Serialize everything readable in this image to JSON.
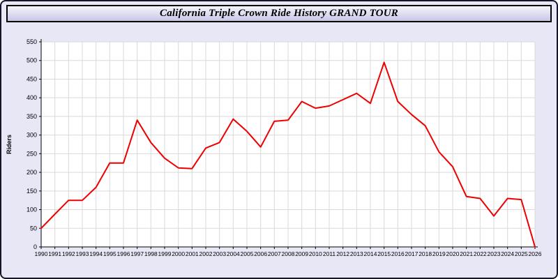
{
  "title": "California Triple Crown Ride History GRAND TOUR",
  "colors": {
    "page_bg": "#e7e7f6",
    "plot_bg": "#ffffff",
    "grid": "#d9d9d9",
    "axis": "#000000",
    "line": "#ee0000"
  },
  "chart_data": {
    "type": "line",
    "title": "California Triple Crown Ride History GRAND TOUR",
    "xlabel": "",
    "ylabel": "Riders",
    "ylim": [
      0,
      550
    ],
    "ytick_step": 50,
    "grid": true,
    "legend": "none",
    "x": [
      1990,
      1991,
      1992,
      1993,
      1994,
      1995,
      1996,
      1997,
      1998,
      1999,
      2000,
      2001,
      2002,
      2003,
      2004,
      2005,
      2006,
      2007,
      2008,
      2009,
      2010,
      2011,
      2012,
      2013,
      2014,
      2015,
      2016,
      2017,
      2018,
      2019,
      2020,
      2021,
      2022,
      2023,
      2024,
      2025,
      2026
    ],
    "values": [
      50,
      88,
      125,
      125,
      160,
      225,
      225,
      340,
      280,
      238,
      212,
      210,
      265,
      280,
      343,
      310,
      268,
      337,
      340,
      390,
      372,
      378,
      395,
      412,
      385,
      495,
      390,
      355,
      325,
      255,
      215,
      135,
      130,
      83,
      130,
      127,
      0
    ]
  }
}
